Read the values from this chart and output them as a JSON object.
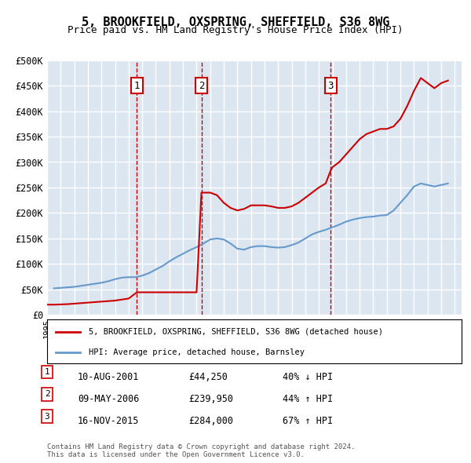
{
  "title": "5, BROOKFIELD, OXSPRING, SHEFFIELD, S36 8WG",
  "subtitle": "Price paid vs. HM Land Registry's House Price Index (HPI)",
  "xlabel": "",
  "ylabel": "",
  "ylim": [
    0,
    500000
  ],
  "yticks": [
    0,
    50000,
    100000,
    150000,
    200000,
    250000,
    300000,
    350000,
    400000,
    450000,
    500000
  ],
  "ytick_labels": [
    "£0",
    "£50K",
    "£100K",
    "£150K",
    "£200K",
    "£250K",
    "£300K",
    "£350K",
    "£400K",
    "£450K",
    "£500K"
  ],
  "background_color": "#dce6f1",
  "plot_bg_color": "#dce6f1",
  "grid_color": "#ffffff",
  "hpi_color": "#6699cc",
  "price_color": "#cc0000",
  "vline_color": "#cc0000",
  "transaction_dates": [
    2001.607,
    2006.355,
    2015.877
  ],
  "transaction_prices": [
    44250,
    239950,
    284000
  ],
  "transaction_labels": [
    "1",
    "2",
    "3"
  ],
  "legend_property_label": "5, BROOKFIELD, OXSPRING, SHEFFIELD, S36 8WG (detached house)",
  "legend_hpi_label": "HPI: Average price, detached house, Barnsley",
  "table_entries": [
    {
      "num": "1",
      "date": "10-AUG-2001",
      "price": "£44,250",
      "pct": "40% ↓ HPI"
    },
    {
      "num": "2",
      "date": "09-MAY-2006",
      "price": "£239,950",
      "pct": "44% ↑ HPI"
    },
    {
      "num": "3",
      "date": "16-NOV-2015",
      "price": "£284,000",
      "pct": "67% ↑ HPI"
    }
  ],
  "footnote": "Contains HM Land Registry data © Crown copyright and database right 2024.\nThis data is licensed under the Open Government Licence v3.0.",
  "hpi_x": [
    1995.5,
    1996.0,
    1996.5,
    1997.0,
    1997.5,
    1998.0,
    1998.5,
    1999.0,
    1999.5,
    2000.0,
    2000.5,
    2001.0,
    2001.5,
    2002.0,
    2002.5,
    2003.0,
    2003.5,
    2004.0,
    2004.5,
    2005.0,
    2005.5,
    2006.0,
    2006.5,
    2007.0,
    2007.5,
    2008.0,
    2008.5,
    2009.0,
    2009.5,
    2010.0,
    2010.5,
    2011.0,
    2011.5,
    2012.0,
    2012.5,
    2013.0,
    2013.5,
    2014.0,
    2014.5,
    2015.0,
    2015.5,
    2016.0,
    2016.5,
    2017.0,
    2017.5,
    2018.0,
    2018.5,
    2019.0,
    2019.5,
    2020.0,
    2020.5,
    2021.0,
    2021.5,
    2022.0,
    2022.5,
    2023.0,
    2023.5,
    2024.0,
    2024.5
  ],
  "hpi_y": [
    52000,
    53000,
    54000,
    55000,
    57000,
    59000,
    61000,
    63000,
    66000,
    70000,
    73000,
    74000,
    74000,
    77000,
    82000,
    89000,
    96000,
    105000,
    113000,
    120000,
    127000,
    133000,
    140000,
    148000,
    150000,
    148000,
    140000,
    130000,
    128000,
    133000,
    135000,
    135000,
    133000,
    132000,
    133000,
    137000,
    142000,
    150000,
    158000,
    163000,
    167000,
    172000,
    177000,
    183000,
    187000,
    190000,
    192000,
    193000,
    195000,
    196000,
    205000,
    220000,
    235000,
    252000,
    258000,
    255000,
    252000,
    255000,
    258000
  ],
  "price_x": [
    1995.0,
    1995.5,
    1996.0,
    1996.5,
    1997.0,
    1997.5,
    1998.0,
    1998.5,
    1999.0,
    1999.5,
    2000.0,
    2000.5,
    2001.0,
    2001.607,
    2001.8,
    2002.5,
    2003.5,
    2004.5,
    2005.5,
    2006.0,
    2006.355,
    2007.0,
    2007.5,
    2008.0,
    2008.5,
    2009.0,
    2009.5,
    2010.0,
    2010.5,
    2011.0,
    2011.5,
    2012.0,
    2012.5,
    2013.0,
    2013.5,
    2014.0,
    2014.5,
    2015.0,
    2015.5,
    2015.877,
    2016.0,
    2016.5,
    2017.0,
    2017.5,
    2018.0,
    2018.5,
    2019.0,
    2019.5,
    2020.0,
    2020.5,
    2021.0,
    2021.5,
    2022.0,
    2022.5,
    2023.0,
    2023.5,
    2024.0,
    2024.5
  ],
  "price_y": [
    20000,
    20000,
    20500,
    21000,
    22000,
    23000,
    24000,
    25000,
    26000,
    27000,
    28000,
    30000,
    32000,
    44250,
    44250,
    44250,
    44250,
    44250,
    44250,
    44250,
    239950,
    239950,
    235000,
    220000,
    210000,
    205000,
    208000,
    215000,
    215000,
    215000,
    213000,
    210000,
    210000,
    213000,
    220000,
    230000,
    240000,
    250000,
    258000,
    284000,
    290000,
    300000,
    315000,
    330000,
    345000,
    355000,
    360000,
    365000,
    365000,
    370000,
    385000,
    410000,
    440000,
    465000,
    455000,
    445000,
    455000,
    460000
  ]
}
